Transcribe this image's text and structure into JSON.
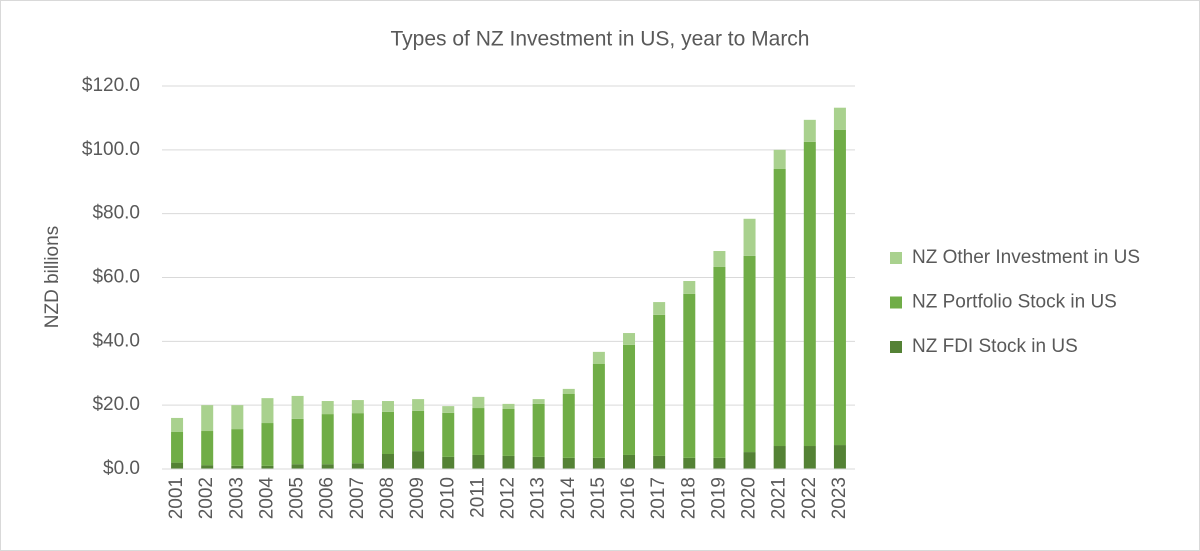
{
  "chart_data": {
    "type": "bar",
    "stacked": true,
    "title": "Types of NZ Investment in US, year to March",
    "y_label": "NZD billions",
    "categories": [
      "2001",
      "2002",
      "2003",
      "2004",
      "2005",
      "2006",
      "2007",
      "2008",
      "2009",
      "2010",
      "2011",
      "2012",
      "2013",
      "2014",
      "2015",
      "2016",
      "2017",
      "2018",
      "2019",
      "2020",
      "2021",
      "2022",
      "2023"
    ],
    "series": [
      {
        "name": "NZ FDI Stock in US",
        "color": "#548235",
        "values": [
          2.0,
          1.2,
          1.0,
          1.0,
          1.5,
          1.5,
          1.8,
          4.7,
          5.6,
          3.8,
          4.4,
          4.1,
          3.8,
          3.5,
          3.5,
          4.4,
          4.1,
          3.5,
          3.5,
          5.3,
          7.2,
          7.2,
          7.5
        ]
      },
      {
        "name": "NZ Portfolio Stock in US",
        "color": "#70ad47",
        "values": [
          9.6,
          10.7,
          11.5,
          13.4,
          14.2,
          15.7,
          15.7,
          13.2,
          12.6,
          13.8,
          14.7,
          14.7,
          16.6,
          20.0,
          29.4,
          34.5,
          44.2,
          51.4,
          59.8,
          61.5,
          86.8,
          95.3,
          98.8
        ]
      },
      {
        "name": "NZ Other Investment in US",
        "color": "#a9d18e",
        "values": [
          4.4,
          8.1,
          7.5,
          7.8,
          7.2,
          4.1,
          4.1,
          3.4,
          3.7,
          2.1,
          3.5,
          1.6,
          1.5,
          1.6,
          3.8,
          3.7,
          4.0,
          4.0,
          5.0,
          11.6,
          6.0,
          6.9,
          6.9
        ]
      }
    ],
    "ylim": [
      0,
      120
    ],
    "yticks": [
      {
        "value": 0,
        "label": "$0.0"
      },
      {
        "value": 20,
        "label": "$20.0"
      },
      {
        "value": 40,
        "label": "$40.0"
      },
      {
        "value": 60,
        "label": "$60.0"
      },
      {
        "value": 80,
        "label": "$80.0"
      },
      {
        "value": 100,
        "label": "$100.0"
      },
      {
        "value": 120,
        "label": "$120.0"
      }
    ],
    "grid": true,
    "legend": "right"
  }
}
